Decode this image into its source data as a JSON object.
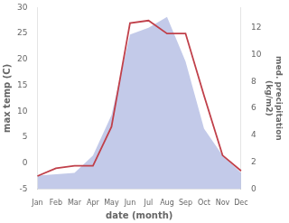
{
  "chart_data": {
    "type": "line",
    "xlabel": "date (month)",
    "ylabel": "max temp (C)",
    "y2label": "med. precipitation\n(kg/m2)",
    "categories": [
      "Jan",
      "Feb",
      "Mar",
      "Apr",
      "May",
      "Jun",
      "Jul",
      "Aug",
      "Sep",
      "Oct",
      "Nov",
      "Dec"
    ],
    "series": [
      {
        "type": "area",
        "axis": "y2",
        "color": "#aab4e0",
        "values": [
          1.0,
          1.1,
          1.2,
          2.5,
          5.5,
          11.5,
          12.0,
          12.8,
          9.5,
          4.5,
          2.5,
          1.2
        ]
      },
      {
        "type": "line",
        "color": "#c0404a",
        "values": [
          -2.5,
          -1.0,
          -0.5,
          -0.5,
          7.0,
          27.0,
          27.5,
          25.0,
          25.0,
          13.0,
          1.5,
          -1.5
        ]
      }
    ],
    "ylim": [
      -5,
      30
    ],
    "yticks": [
      -5,
      0,
      5,
      10,
      15,
      20,
      25,
      30
    ],
    "y2lim": [
      0,
      13.5
    ],
    "y2ticks": [
      0,
      2,
      4,
      6,
      8,
      10,
      12
    ],
    "grid": false
  }
}
